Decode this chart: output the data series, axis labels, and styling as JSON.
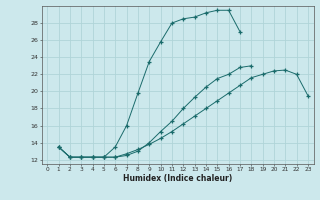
{
  "xlabel": "Humidex (Indice chaleur)",
  "bg_color": "#cce8ec",
  "grid_color": "#b0d4d8",
  "line_color": "#1a6b6b",
  "xlim": [
    -0.5,
    23.5
  ],
  "ylim": [
    11.5,
    30.0
  ],
  "xticks": [
    0,
    1,
    2,
    3,
    4,
    5,
    6,
    7,
    8,
    9,
    10,
    11,
    12,
    13,
    14,
    15,
    16,
    17,
    18,
    19,
    20,
    21,
    22,
    23
  ],
  "yticks": [
    12,
    14,
    16,
    18,
    20,
    22,
    24,
    26,
    28
  ],
  "line1_x": [
    1,
    2,
    3,
    4,
    5,
    6,
    7,
    8,
    9,
    10,
    11,
    12,
    13,
    14,
    15,
    16,
    17,
    18,
    19,
    20,
    21,
    22,
    23
  ],
  "line1_y": [
    13.5,
    12.3,
    12.3,
    12.3,
    12.3,
    12.3,
    12.7,
    13.2,
    13.8,
    14.5,
    15.3,
    16.2,
    17.1,
    18.0,
    18.9,
    19.8,
    20.7,
    21.6,
    22.0,
    22.4,
    22.5,
    22.0,
    19.5
  ],
  "line2_x": [
    1,
    2,
    3,
    4,
    5,
    6,
    7,
    8,
    9,
    10,
    11,
    12,
    13,
    14,
    15,
    16,
    17
  ],
  "line2_y": [
    13.5,
    12.3,
    12.3,
    12.3,
    12.3,
    13.5,
    16.0,
    19.8,
    23.5,
    25.8,
    28.0,
    28.5,
    28.7,
    29.2,
    29.5,
    29.5,
    27.0
  ],
  "line3_x": [
    1,
    2,
    3,
    4,
    5,
    6,
    7,
    8,
    9,
    10,
    11,
    12,
    13,
    14,
    15,
    16,
    17,
    18
  ],
  "line3_y": [
    13.5,
    12.3,
    12.3,
    12.3,
    12.3,
    12.3,
    12.5,
    13.0,
    14.0,
    15.3,
    16.5,
    18.0,
    19.3,
    20.5,
    21.5,
    22.0,
    22.8,
    23.0
  ]
}
